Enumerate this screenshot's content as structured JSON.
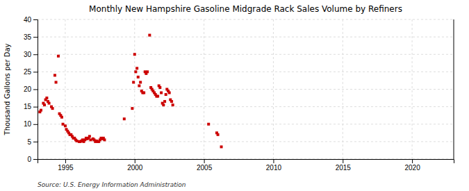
{
  "chart_data": {
    "type": "scatter",
    "title": "Monthly New Hampshire Gasoline Midgrade Rack Sales Volume by Refiners",
    "ylabel": "Thousand Gallons per Day",
    "annotation": "Source: U.S. Energy Information Administration",
    "color": "#cc0000",
    "marker": "square",
    "grid": true,
    "xlim": [
      1993.0,
      2023.0
    ],
    "ylim": [
      0,
      40
    ],
    "xticks": [
      1995,
      2000,
      2005,
      2010,
      2015,
      2020
    ],
    "yticks": [
      0,
      5,
      10,
      15,
      20,
      25,
      30,
      35,
      40
    ],
    "x": [
      1993.17,
      1993.25,
      1993.42,
      1993.5,
      1993.58,
      1993.67,
      1993.75,
      1993.83,
      1994.0,
      1994.08,
      1994.25,
      1994.33,
      1994.5,
      1994.58,
      1994.67,
      1994.75,
      1994.83,
      1995.0,
      1995.08,
      1995.17,
      1995.25,
      1995.33,
      1995.42,
      1995.5,
      1995.58,
      1995.67,
      1995.75,
      1995.83,
      1996.0,
      1996.08,
      1996.17,
      1996.25,
      1996.33,
      1996.42,
      1996.5,
      1996.58,
      1996.67,
      1996.75,
      1996.83,
      1997.0,
      1997.08,
      1997.17,
      1997.25,
      1997.33,
      1997.42,
      1997.5,
      1997.58,
      1997.67,
      1997.75,
      1997.83,
      1999.25,
      1999.83,
      1999.92,
      2000.0,
      2000.08,
      2000.17,
      2000.25,
      2000.33,
      2000.42,
      2000.5,
      2000.58,
      2000.67,
      2000.75,
      2000.83,
      2000.92,
      2001.08,
      2001.17,
      2001.25,
      2001.33,
      2001.42,
      2001.5,
      2001.58,
      2001.67,
      2001.75,
      2001.83,
      2001.92,
      2002.0,
      2002.08,
      2002.17,
      2002.25,
      2002.33,
      2002.42,
      2002.5,
      2002.58,
      2002.67,
      2002.75,
      2005.33,
      2005.92,
      2006.0,
      2006.25
    ],
    "values": [
      13.5,
      14.0,
      16.0,
      15.5,
      17.0,
      17.5,
      16.5,
      16.0,
      15.0,
      14.5,
      24.0,
      22.0,
      29.5,
      13.0,
      12.5,
      12.0,
      10.0,
      9.5,
      8.5,
      8.0,
      7.5,
      7.0,
      7.0,
      6.5,
      6.0,
      6.0,
      5.5,
      5.2,
      5.0,
      5.0,
      5.2,
      5.5,
      5.0,
      5.5,
      6.0,
      5.8,
      6.0,
      6.5,
      5.5,
      5.8,
      5.5,
      5.0,
      5.2,
      5.0,
      5.0,
      5.5,
      6.0,
      5.8,
      6.0,
      5.5,
      11.5,
      14.5,
      22.0,
      30.0,
      25.0,
      26.0,
      23.5,
      21.0,
      22.0,
      19.5,
      19.0,
      19.0,
      25.0,
      24.5,
      25.0,
      35.5,
      20.5,
      20.0,
      19.5,
      19.0,
      18.5,
      18.0,
      18.0,
      21.0,
      20.5,
      19.0,
      16.0,
      15.5,
      16.5,
      18.5,
      20.0,
      19.5,
      19.0,
      17.0,
      16.5,
      15.5,
      10.0,
      7.5,
      7.0,
      3.5
    ]
  }
}
